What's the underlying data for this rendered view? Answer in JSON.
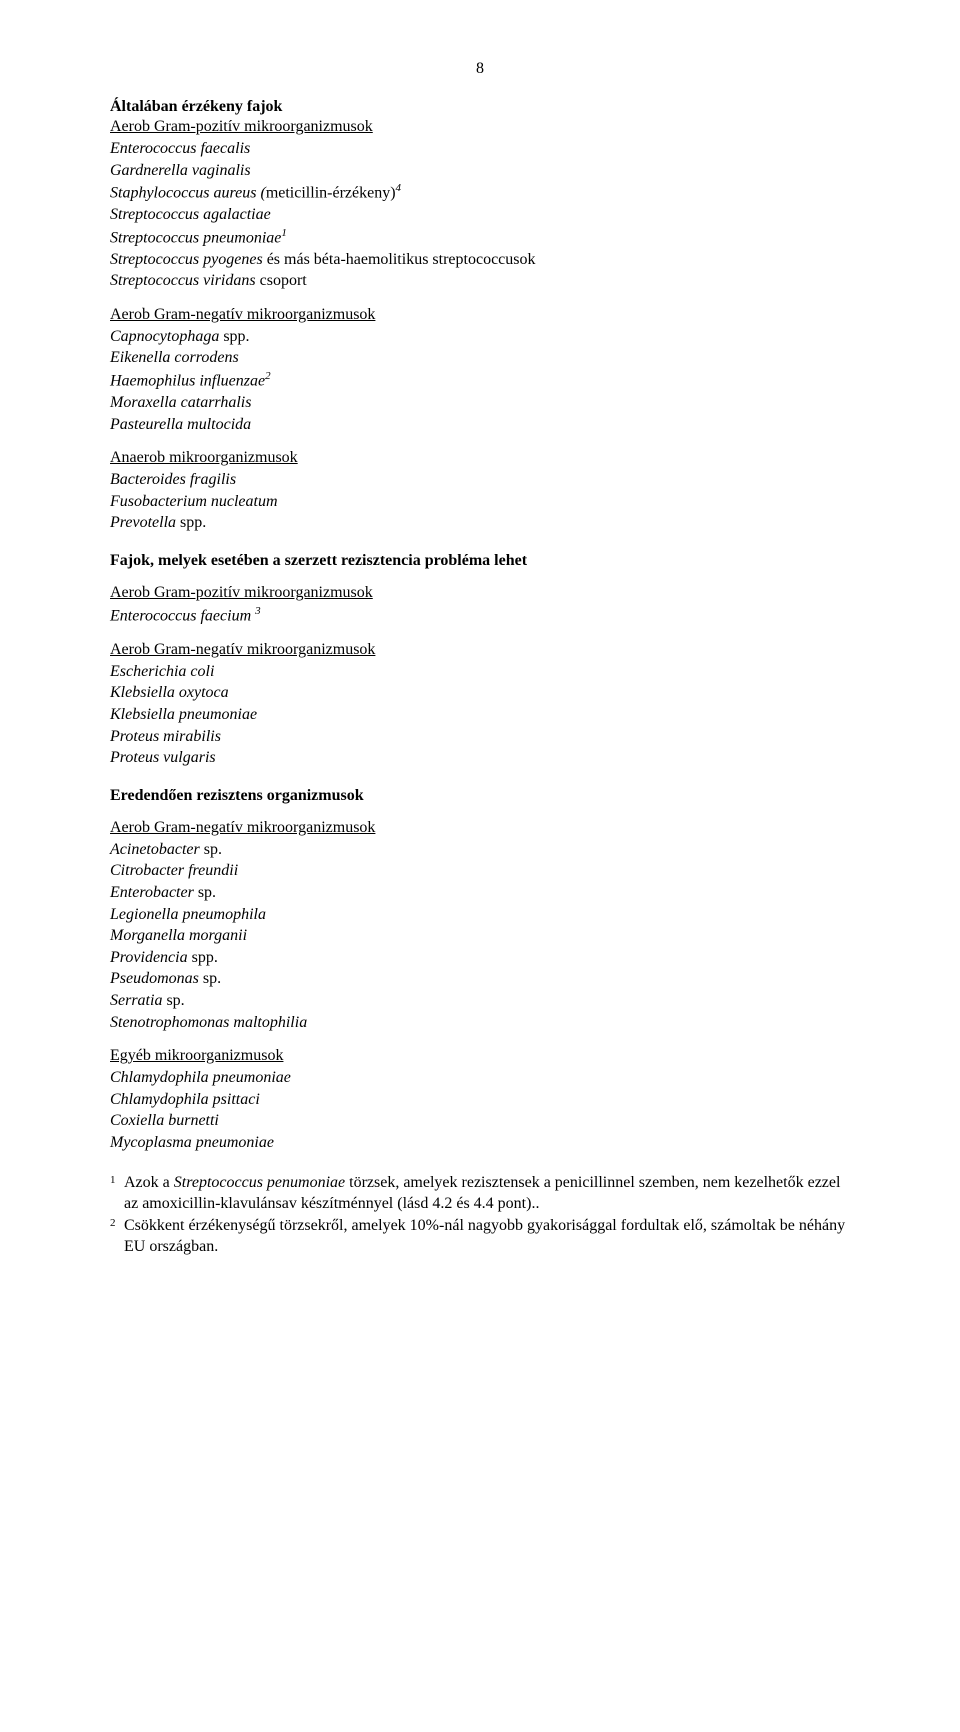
{
  "pageNumber": "8",
  "sections": [
    {
      "heading": "Általában érzékeny fajok",
      "categories": [
        {
          "title": "Aerob Gram-pozitív mikroorganizmusok",
          "items": [
            {
              "text": "Enterococcus faecalis",
              "italic": true
            },
            {
              "text": "Gardnerella vaginalis",
              "italic": true
            },
            {
              "text": "Staphylococcus aureus (",
              "italic": true,
              "tail": "meticillin-érzékeny)",
              "tailItalic": false,
              "sup": "4"
            },
            {
              "text": "Streptococcus agalactiae",
              "italic": true
            },
            {
              "text": "Streptococcus pneumoniae",
              "italic": true,
              "sup": "1"
            },
            {
              "text": "Streptococcus pyogenes",
              "italic": true,
              "tail": " és más béta-haemolitikus streptococcusok",
              "tailItalic": false
            },
            {
              "text": "Streptococcus viridans",
              "italic": true,
              "tail": " csoport",
              "tailItalic": false
            }
          ]
        },
        {
          "title": "Aerob Gram-negatív mikroorganizmusok",
          "items": [
            {
              "text": "Capnocytophaga",
              "italic": true,
              "tail": " spp.",
              "tailItalic": false
            },
            {
              "text": "Eikenella corrodens",
              "italic": true
            },
            {
              "text": "Haemophilus influenzae",
              "italic": true,
              "sup": "2"
            },
            {
              "text": "Moraxella catarrhalis",
              "italic": true
            },
            {
              "text": "Pasteurella multocida",
              "italic": true
            }
          ]
        },
        {
          "title": "Anaerob mikroorganizmusok",
          "items": [
            {
              "text": "Bacteroides fragilis",
              "italic": true
            },
            {
              "text": "Fusobacterium nucleatum",
              "italic": true
            },
            {
              "text": "Prevotella",
              "italic": true,
              "tail": " spp.",
              "tailItalic": false
            }
          ]
        }
      ]
    },
    {
      "heading": "Fajok, melyek esetében a szerzett rezisztencia probléma lehet",
      "categories": [
        {
          "title": "Aerob Gram-pozitív mikroorganizmusok",
          "items": [
            {
              "text": "Enterococcus faecium ",
              "italic": true,
              "sup": "3"
            }
          ]
        },
        {
          "title": "Aerob Gram-negatív mikroorganizmusok",
          "items": [
            {
              "text": "Escherichia coli",
              "italic": true
            },
            {
              "text": "Klebsiella oxytoca",
              "italic": true
            },
            {
              "text": "Klebsiella pneumoniae",
              "italic": true
            },
            {
              "text": "Proteus mirabilis",
              "italic": true
            },
            {
              "text": "Proteus vulgaris",
              "italic": true
            }
          ]
        }
      ]
    },
    {
      "heading": "Eredendően rezisztens organizmusok",
      "categories": [
        {
          "title": "Aerob Gram-negatív mikroorganizmusok",
          "items": [
            {
              "text": "Acinetobacter",
              "italic": true,
              "tail": " sp.",
              "tailItalic": false
            },
            {
              "text": "Citrobacter freundii",
              "italic": true
            },
            {
              "text": "Enterobacter",
              "italic": true,
              "tail": " sp.",
              "tailItalic": false
            },
            {
              "text": "Legionella pneumophila",
              "italic": true
            },
            {
              "text": "Morganella morganii",
              "italic": true
            },
            {
              "text": "Providencia",
              "italic": true,
              "tail": " spp.",
              "tailItalic": false
            },
            {
              "text": "Pseudomonas",
              "italic": true,
              "tail": " sp.",
              "tailItalic": false
            },
            {
              "text": "Serratia",
              "italic": true,
              "tail": " sp.",
              "tailItalic": false
            },
            {
              "text": "Stenotrophomonas maltophilia",
              "italic": true
            }
          ]
        },
        {
          "title": "Egyéb mikroorganizmusok",
          "items": [
            {
              "text": "Chlamydophila pneumoniae",
              "italic": true
            },
            {
              "text": "Chlamydophila psittaci",
              "italic": true
            },
            {
              "text": "Coxiella burnetti",
              "italic": true
            },
            {
              "text": "Mycoplasma pneumoniae",
              "italic": true
            }
          ]
        }
      ]
    }
  ],
  "footnotes": [
    {
      "num": "1",
      "lead": "Azok a ",
      "italic": "Streptococcus penumoniae",
      "rest": " törzsek, amelyek rezisztensek a penicillinnel szemben, nem kezelhetők ezzel az amoxicillin-klavulánsav készítménnyel (lásd 4.2 és 4.4 pont).."
    },
    {
      "num": "2",
      "lead": "",
      "italic": "",
      "rest": "Csökkent érzékenységű törzsekről, amelyek 10%-nál nagyobb gyakorisággal fordultak elő, számoltak be néhány EU országban."
    }
  ]
}
